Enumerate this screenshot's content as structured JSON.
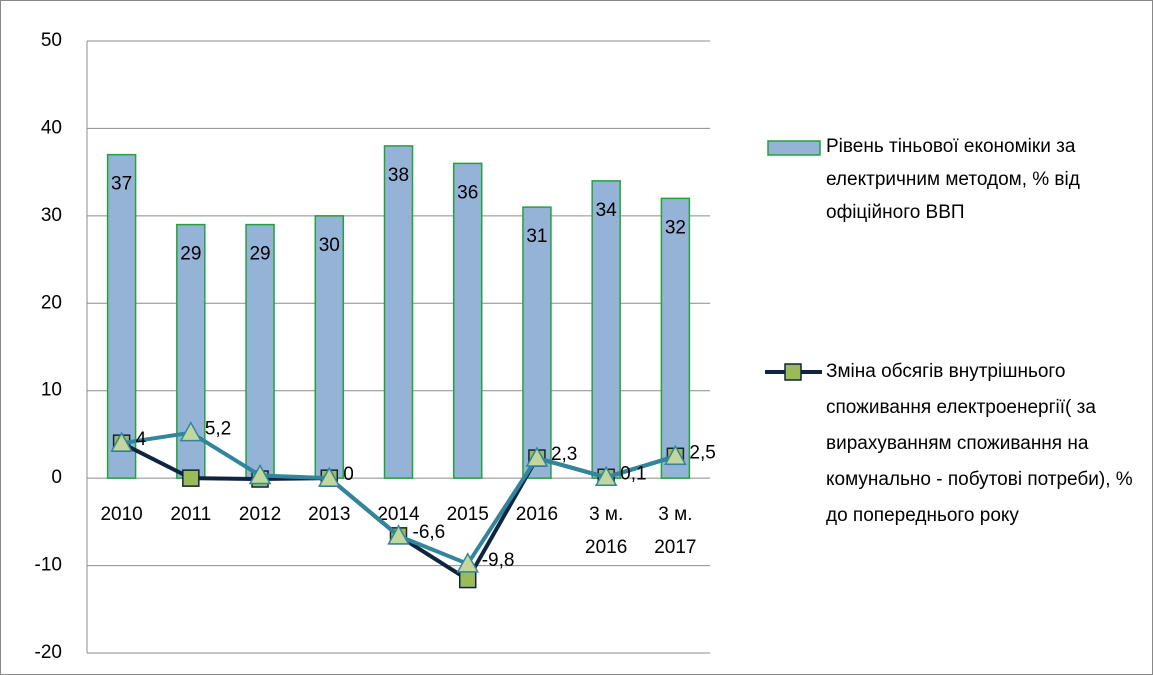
{
  "chart_data": {
    "type": "bar-line",
    "categories": [
      "2010",
      "2011",
      "2012",
      "2013",
      "2014",
      "2015",
      "2016",
      "3 м. 2016",
      "3 м. 2017"
    ],
    "series": [
      {
        "name": "Рівень тіньової економіки за електричним методом, % від офіційного ВВП",
        "type": "bar",
        "color": "#95b3d7",
        "edge_color": "#22a33a",
        "values": [
          37,
          29,
          29,
          30,
          38,
          36,
          31,
          34,
          32
        ]
      },
      {
        "name": "Зміна обсягів внутрішнього споживання електроенергії( за вирахуванням споживання на комунально - побутові потреби), % до попереднього року",
        "type": "line",
        "color": "#0f243e",
        "marker": "square",
        "marker_color": "#9bbb59",
        "values": [
          4,
          0,
          -0.1,
          0,
          -6.6,
          -11.6,
          2.3,
          0.1,
          2.5
        ]
      },
      {
        "type": "line",
        "color": "#31859c",
        "marker": "triangle",
        "marker_color": "#c3d69b",
        "values": [
          4,
          5.2,
          0.3,
          0,
          -6.6,
          -9.8,
          2.3,
          0.1,
          2.5
        ],
        "value_labels": [
          "4",
          "5,2",
          null,
          "0",
          "-6,6",
          "-9,8",
          "2,3",
          "0,1",
          "2,5"
        ]
      }
    ],
    "ylim": [
      -20,
      50
    ],
    "yticks": [
      -20,
      -10,
      0,
      10,
      20,
      30,
      40,
      50
    ],
    "grid": true,
    "legend": "right"
  }
}
